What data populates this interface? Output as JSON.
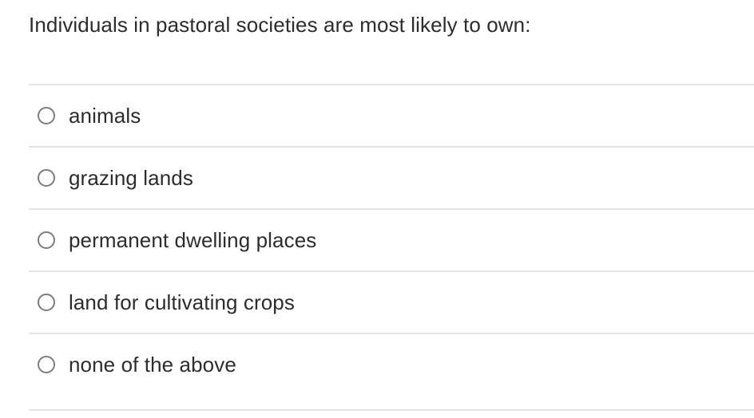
{
  "question": {
    "text": "Individuals in pastoral societies are most likely to own:"
  },
  "answers": [
    {
      "label": "animals",
      "selected": false
    },
    {
      "label": "grazing lands",
      "selected": false
    },
    {
      "label": "permanent dwelling places",
      "selected": false
    },
    {
      "label": "land for cultivating crops",
      "selected": false
    },
    {
      "label": "none of the above",
      "selected": false
    }
  ],
  "colors": {
    "background": "#ffffff",
    "text": "#2d2d2d",
    "divider": "#e4e4e4",
    "radio_border": "#7d7d7d"
  }
}
